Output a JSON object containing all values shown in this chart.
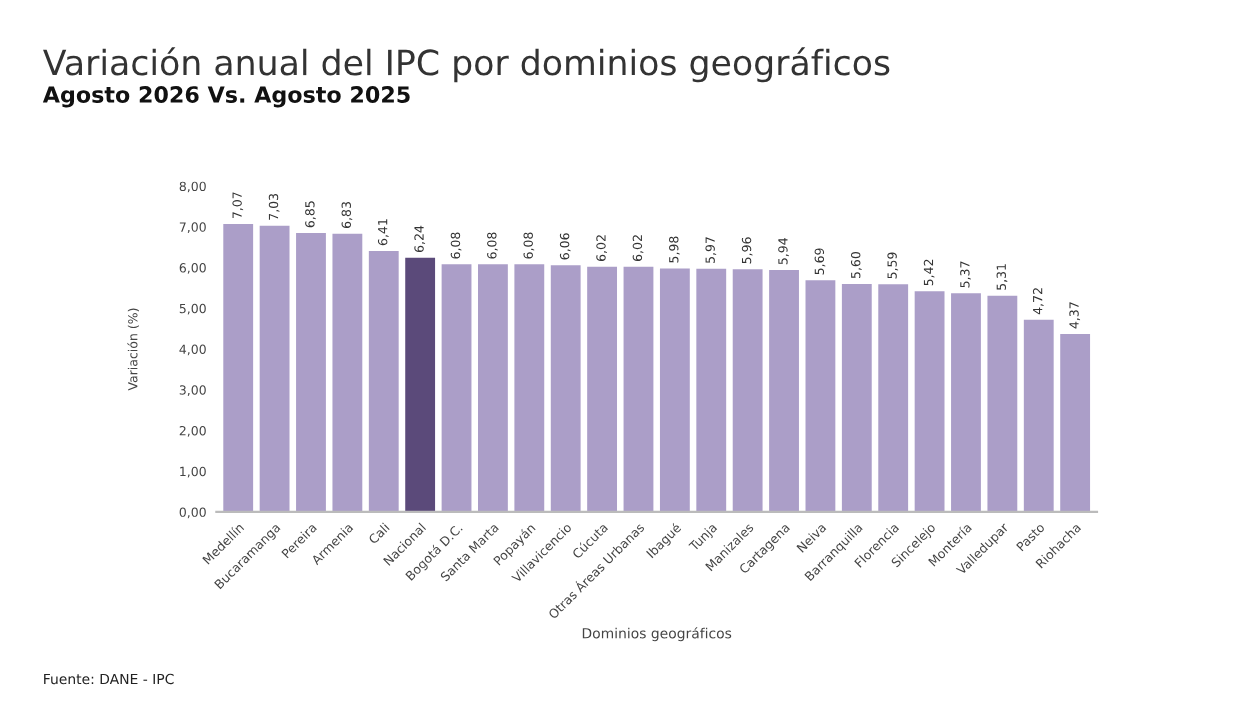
{
  "chart_data": {
    "type": "bar",
    "title": "Variación anual del IPC por dominios geográficos",
    "subtitle": "Agosto 2026 Vs. Agosto 2025",
    "xlabel": "Dominios geográficos",
    "ylabel": "Variación (%)",
    "categories": [
      "Medellín",
      "Bucaramanga",
      "Pereira",
      "Armenia",
      "Cali",
      "Nacional",
      "Bogotá D.C.",
      "Santa Marta",
      "Popayán",
      "Villavicencio",
      "Cúcuta",
      "Otras Áreas Urbanas",
      "Ibagué",
      "Tunja",
      "Manizales",
      "Cartagena",
      "Neiva",
      "Barranquilla",
      "Florencia",
      "Sincelejo",
      "Montería",
      "Valledupar",
      "Pasto",
      "Riohacha"
    ],
    "values": [
      7.07,
      7.03,
      6.85,
      6.83,
      6.41,
      6.24,
      6.08,
      6.08,
      6.08,
      6.06,
      6.02,
      6.02,
      5.98,
      5.97,
      5.96,
      5.94,
      5.69,
      5.6,
      5.59,
      5.42,
      5.37,
      5.31,
      4.72,
      4.37
    ],
    "colors": [
      "#ab9ec8",
      "#ab9ec8",
      "#ab9ec8",
      "#ab9ec8",
      "#ab9ec8",
      "#5b4a7a",
      "#ab9ec8",
      "#ab9ec8",
      "#ab9ec8",
      "#ab9ec8",
      "#ab9ec8",
      "#ab9ec8",
      "#ab9ec8",
      "#ab9ec8",
      "#ab9ec8",
      "#ab9ec8",
      "#ab9ec8",
      "#ab9ec8",
      "#ab9ec8",
      "#ab9ec8",
      "#ab9ec8",
      "#ab9ec8",
      "#ab9ec8",
      "#ab9ec8"
    ],
    "value_labels": [
      "7,07",
      "7,03",
      "6,85",
      "6,83",
      "6,41",
      "6,24",
      "6,08",
      "6,08",
      "6,08",
      "6,06",
      "6,02",
      "6,02",
      "5,98",
      "5,97",
      "5,96",
      "5,94",
      "5,69",
      "5,60",
      "5,59",
      "5,42",
      "5,37",
      "5,31",
      "4,72",
      "4,37"
    ],
    "ylim": [
      0,
      8
    ],
    "yticks": [
      {
        "value": 0,
        "label": "0,00"
      },
      {
        "value": 1,
        "label": "1,00"
      },
      {
        "value": 2,
        "label": "2,00"
      },
      {
        "value": 3,
        "label": "3,00"
      },
      {
        "value": 4,
        "label": "4,00"
      },
      {
        "value": 5,
        "label": "5,00"
      },
      {
        "value": 6,
        "label": "6,00"
      },
      {
        "value": 7,
        "label": "7,00"
      },
      {
        "value": 8,
        "label": "8,00"
      }
    ],
    "grid": false,
    "legend": false,
    "annotations": [
      "Fuente: DANE - IPC"
    ]
  }
}
